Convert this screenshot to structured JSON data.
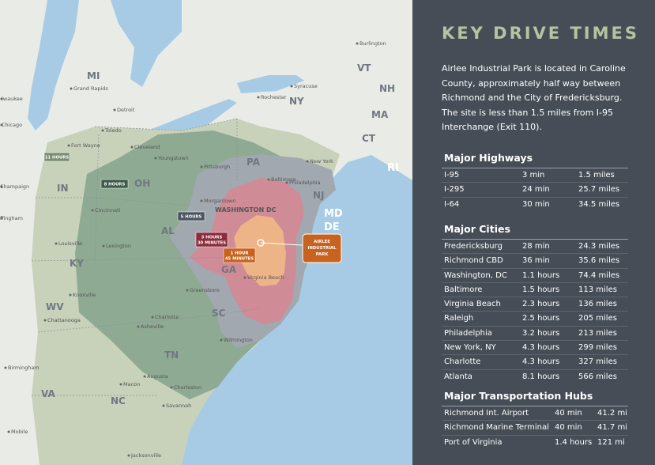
{
  "map": {
    "states": [
      "MI",
      "OH",
      "IN",
      "KY",
      "WV",
      "VA",
      "NC",
      "TN",
      "SC",
      "GA",
      "AL",
      "PA",
      "NY",
      "NJ",
      "MD",
      "DE",
      "VT",
      "NH",
      "MA",
      "CT",
      "RI"
    ],
    "cities": [
      "Burlington",
      "Syracuse",
      "Rochester",
      "Grand Rapids",
      "Detroit",
      "lwaukee",
      "Chicago",
      "Toledo",
      "Cleveland",
      "Fort Wayne",
      "Youngstown",
      "Pittsburgh",
      "Champaign",
      "Cincinnati",
      "Morgantown",
      "ffingham",
      "Lexington",
      "Louisville",
      "Knoxville",
      "Chattanooga",
      "Asheville",
      "Charlotte",
      "Greensboro",
      "Birmingham",
      "Macon",
      "Augusta",
      "Charleston",
      "Savannah",
      "Mobile",
      "Jacksonville",
      "Wilmington",
      "Baltimore",
      "Philadelphia",
      "New York",
      "Virginia Beach",
      "WASHINGTON DC"
    ],
    "drive_times": [
      [
        "11 HOURS"
      ],
      [
        "8 HOURS"
      ],
      [
        "5 HOURS"
      ],
      [
        "3 HOURS",
        "30 MINUTES"
      ],
      [
        "1 HOUR",
        "45 MINUTES"
      ]
    ],
    "site": [
      "AIRLEE",
      "INDUSTRIAL",
      "PARK"
    ]
  },
  "panel": {
    "title": "KEY DRIVE TIMES",
    "intro": "Airlee Industrial Park is located in Caroline County, approximately half way between Richmond and the City of Fredericksburg. The site is less than 1.5 miles from I-95 Interchange (Exit 110).",
    "sections": [
      {
        "heading": "Major Highways",
        "rows": [
          [
            "I-95",
            "3 min",
            "1.5 miles"
          ],
          [
            "I-295",
            "24 min",
            "25.7 miles"
          ],
          [
            "I-64",
            "30 min",
            "34.5 miles"
          ]
        ]
      },
      {
        "heading": "Major Cities",
        "rows": [
          [
            "Fredericksburg",
            "28 min",
            "24.3 miles"
          ],
          [
            "Richmond CBD",
            "36 min",
            "35.6 miles"
          ],
          [
            "Washington, DC",
            "1.1 hours",
            "74.4 miles"
          ],
          [
            "Baltimore",
            "1.5 hours",
            "113 miles"
          ],
          [
            "Virginia Beach",
            "2.3 hours",
            "136 miles"
          ],
          [
            "Raleigh",
            "2.5 hours",
            "205 miles"
          ],
          [
            "Philadelphia",
            "3.2 hours",
            "213 miles"
          ],
          [
            "New York, NY",
            "4.3 hours",
            "299 miles"
          ],
          [
            "Charlotte",
            "4.3 hours",
            "327 miles"
          ],
          [
            "Atlanta",
            "8.1 hours",
            "566 miles"
          ]
        ]
      },
      {
        "heading": "Major Transportation Hubs",
        "rows": [
          [
            "Richmond Int. Airport",
            "40 min",
            "41.2 mi"
          ],
          [
            "Richmond Marine Terminal",
            "40 min",
            "41.7 mi"
          ],
          [
            "Port of Virginia",
            "1.4 hours",
            "121 mi"
          ]
        ]
      }
    ]
  }
}
